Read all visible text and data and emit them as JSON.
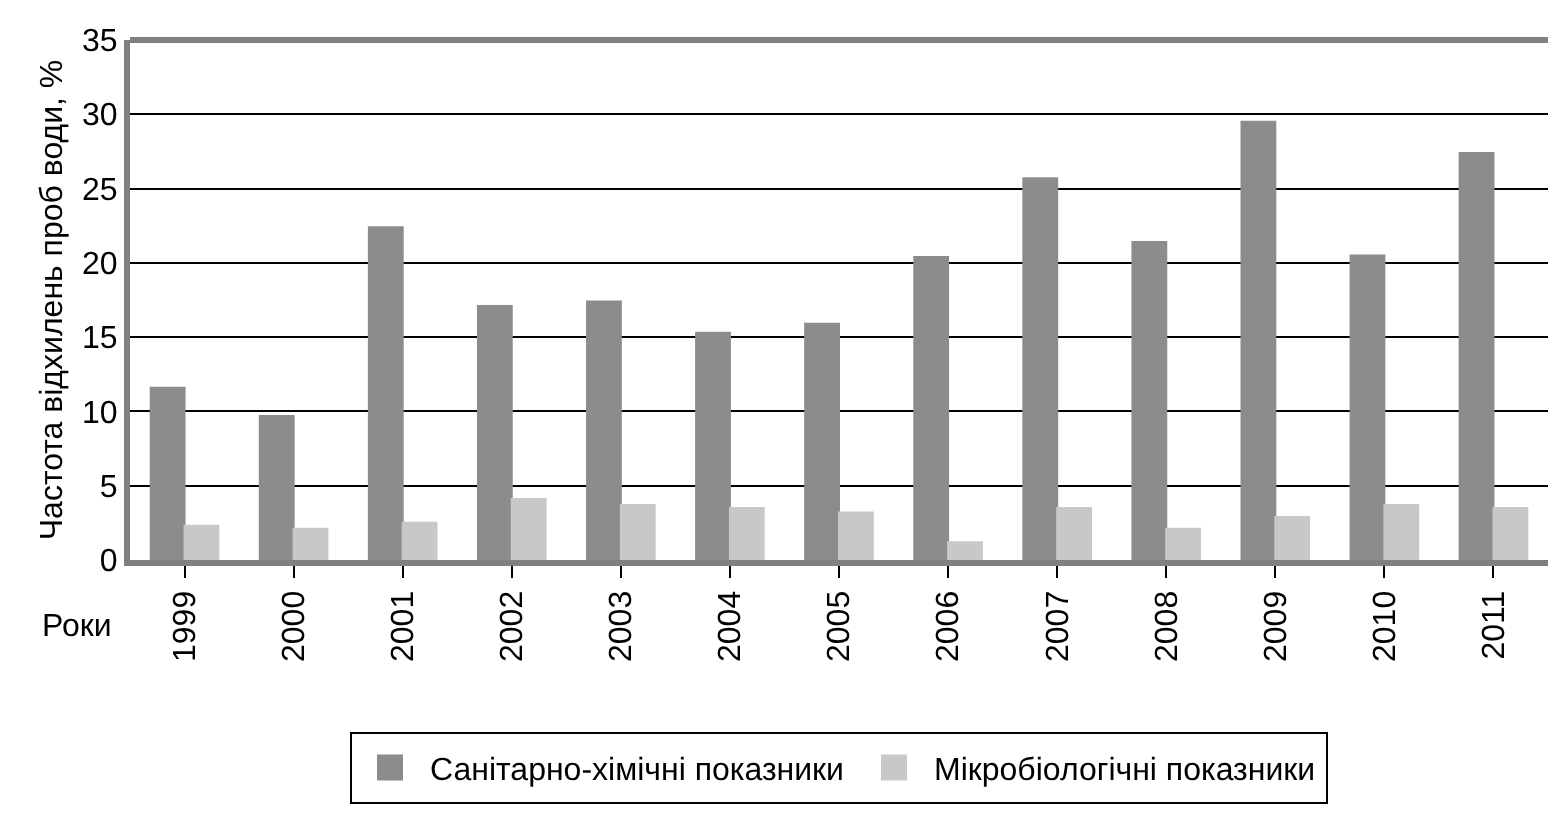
{
  "chart_data": {
    "type": "bar",
    "ylabel": "Частота відхилень проб води, %",
    "xlabel": "Роки",
    "categories": [
      "1999",
      "2000",
      "2001",
      "2002",
      "2003",
      "2004",
      "2005",
      "2006",
      "2007",
      "2008",
      "2009",
      "2010",
      "2011"
    ],
    "series": [
      {
        "name": "Санітарно-хімічні показники",
        "color": "#8c8c8c",
        "values": [
          11.6,
          9.7,
          22.4,
          17.1,
          17.4,
          15.3,
          15.9,
          20.4,
          25.7,
          21.4,
          29.5,
          20.5,
          27.4
        ]
      },
      {
        "name": "Мікробіологічні показники",
        "color": "#c8c8c8",
        "values": [
          2.3,
          2.1,
          2.5,
          4.1,
          3.7,
          3.5,
          3.2,
          1.2,
          3.5,
          2.1,
          2.9,
          3.7,
          3.5
        ]
      }
    ],
    "ylim": [
      0,
      35
    ],
    "yticks": [
      0,
      5,
      10,
      15,
      20,
      25,
      30,
      35
    ],
    "grid": "y",
    "legend": "bottom"
  }
}
